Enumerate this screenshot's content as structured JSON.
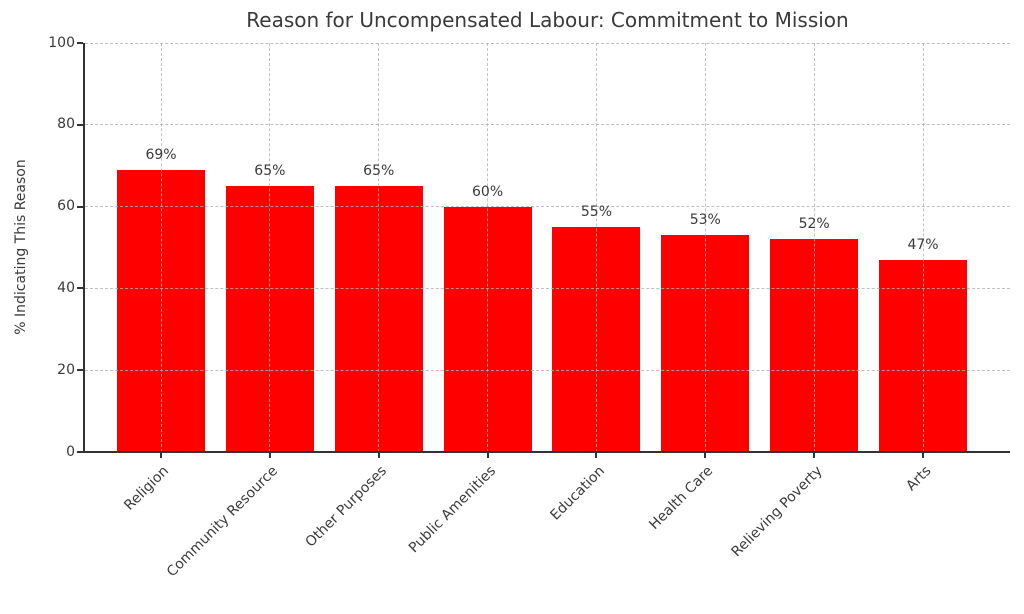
{
  "chart_data": {
    "type": "bar",
    "title": "Reason for Uncompensated Labour: Commitment to Mission",
    "xlabel": "",
    "ylabel": "% Indicating This Reason",
    "categories": [
      "Religion",
      "Community Resource",
      "Other Purposes",
      "Public Amenities",
      "Education",
      "Health Care",
      "Relieving Poverty",
      "Arts"
    ],
    "values": [
      69,
      65,
      65,
      60,
      55,
      53,
      52,
      47
    ],
    "value_labels": [
      "69%",
      "65%",
      "65%",
      "60%",
      "55%",
      "53%",
      "52%",
      "47%"
    ],
    "ylim": [
      0,
      100
    ],
    "yticks": [
      0,
      20,
      40,
      60,
      80,
      100
    ],
    "grid": true,
    "grid_style": "dashed",
    "legend": false,
    "bar_color": "#ff0000",
    "text_color": "#3a3a3a",
    "x_tick_rotation_deg": 45
  }
}
